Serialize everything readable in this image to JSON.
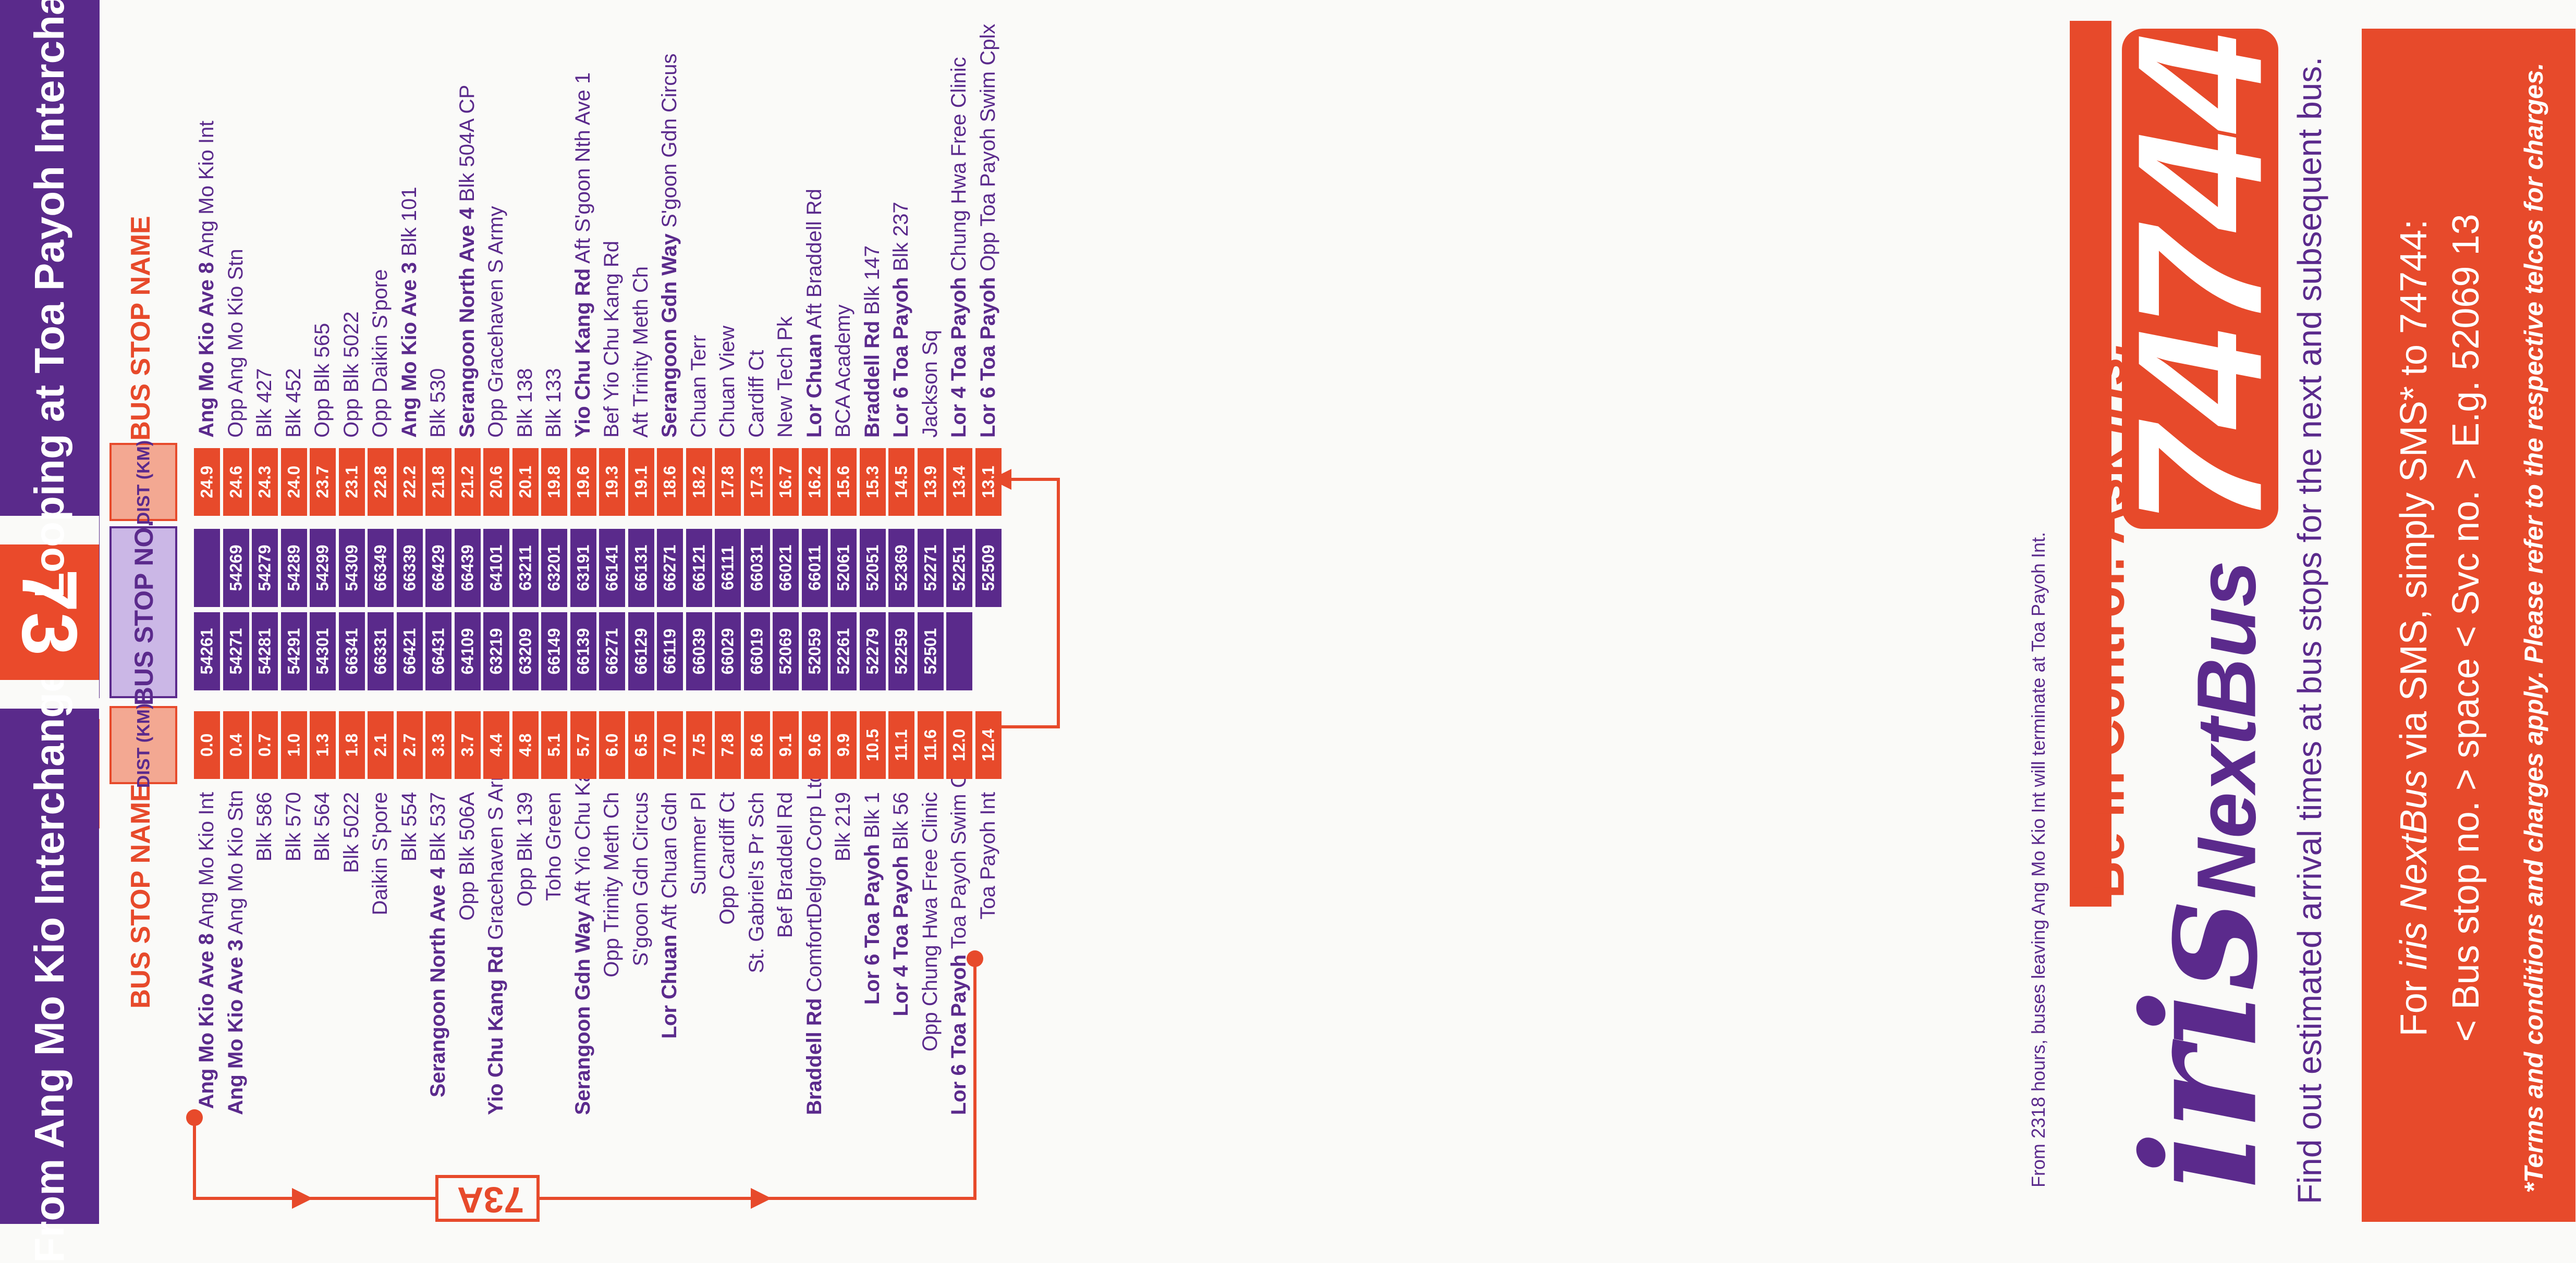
{
  "left_panel": {
    "header": "From Ang Mo Kio Interchange",
    "col_name": "BUS STOP NAME",
    "col_dist": "DIST (KM)",
    "col_stop": "BUS STOP NO.",
    "rows": [
      {
        "b": "Ang Mo Kio Ave 8",
        "n": " Ang Mo Kio Int",
        "d": "0.0",
        "s": "54261"
      },
      {
        "b": "Ang Mo Kio Ave 3",
        "n": " Ang Mo Kio Stn",
        "d": "0.4",
        "s": "54271"
      },
      {
        "b": "",
        "n": "Blk 586",
        "d": "0.7",
        "s": "54281"
      },
      {
        "b": "",
        "n": "Blk 570",
        "d": "1.0",
        "s": "54291"
      },
      {
        "b": "",
        "n": "Blk 564",
        "d": "1.3",
        "s": "54301"
      },
      {
        "b": "",
        "n": "Blk 5022",
        "d": "1.8",
        "s": "66341"
      },
      {
        "b": "",
        "n": "Daikin S'pore",
        "d": "2.1",
        "s": "66331"
      },
      {
        "b": "",
        "n": "Blk 554",
        "d": "2.7",
        "s": "66421"
      },
      {
        "b": "Serangoon North Ave 4",
        "n": " Blk 537",
        "d": "3.3",
        "s": "66431"
      },
      {
        "b": "",
        "n": "Opp Blk 506A",
        "d": "3.7",
        "s": "64109"
      },
      {
        "b": "Yio Chu Kang Rd",
        "n": " Gracehaven S Army",
        "d": "4.4",
        "s": "63219"
      },
      {
        "b": "",
        "n": "Opp Blk 139",
        "d": "4.8",
        "s": "63209"
      },
      {
        "b": "",
        "n": "Toho Green",
        "d": "5.1",
        "s": "66149"
      },
      {
        "b": "Serangoon Gdn Way",
        "n": " Aft Yio Chu Kang Rd",
        "d": "5.7",
        "s": "66139"
      },
      {
        "b": "",
        "n": "Opp Trinity Meth Ch",
        "d": "6.0",
        "s": "66271"
      },
      {
        "b": "",
        "n": "S'goon Gdn Circus",
        "d": "6.5",
        "s": "66129"
      },
      {
        "b": "Lor Chuan",
        "n": " Aft Chuan Gdn",
        "d": "7.0",
        "s": "66119"
      },
      {
        "b": "",
        "n": "Summer Pl",
        "d": "7.5",
        "s": "66039"
      },
      {
        "b": "",
        "n": "Opp Cardiff Ct",
        "d": "7.8",
        "s": "66029"
      },
      {
        "b": "",
        "n": "St. Gabriel's Pr Sch",
        "d": "8.6",
        "s": "66019"
      },
      {
        "b": "",
        "n": "Bef Braddell Rd",
        "d": "9.1",
        "s": "52069"
      },
      {
        "b": "Braddell Rd",
        "n": " ComfortDelgro Corp Ltd",
        "d": "9.6",
        "s": "52059"
      },
      {
        "b": "",
        "n": "Blk 219",
        "d": "9.9",
        "s": "52261"
      },
      {
        "b": "Lor 6 Toa Payoh",
        "n": " Blk 1",
        "d": "10.5",
        "s": "52279"
      },
      {
        "b": "Lor 4 Toa Payoh",
        "n": " Blk 56",
        "d": "11.1",
        "s": "52259"
      },
      {
        "b": "",
        "n": "Opp Chung Hwa Free Clinic",
        "d": "11.6",
        "s": "52501"
      },
      {
        "b": "Lor 6 Toa Payoh",
        "n": " Toa Payoh Swim Cplx",
        "d": "12.0",
        "s": ""
      },
      {
        "b": "",
        "n": "Toa Payoh Int",
        "d": "12.4",
        "s": ""
      }
    ]
  },
  "service": {
    "number": "73",
    "variant": "73A"
  },
  "right_panel": {
    "header": "Looping at Toa Payoh Interchange",
    "col_dist": "DIST (KM)",
    "col_name": "BUS STOP NAME",
    "rows": [
      {
        "s": "",
        "d": "24.9",
        "b": "Ang Mo Kio Ave 8",
        "n": " Ang Mo Kio Int"
      },
      {
        "s": "54269",
        "d": "24.6",
        "b": "",
        "n": "Opp Ang Mo Kio Stn"
      },
      {
        "s": "54279",
        "d": "24.3",
        "b": "",
        "n": "Blk 427"
      },
      {
        "s": "54289",
        "d": "24.0",
        "b": "",
        "n": "Blk 452"
      },
      {
        "s": "54299",
        "d": "23.7",
        "b": "",
        "n": "Opp Blk 565"
      },
      {
        "s": "54309",
        "d": "23.1",
        "b": "",
        "n": "Opp Blk 5022"
      },
      {
        "s": "66349",
        "d": "22.8",
        "b": "",
        "n": "Opp Daikin S'pore"
      },
      {
        "s": "66339",
        "d": "22.2",
        "b": "Ang Mo Kio Ave 3",
        "n": " Blk 101"
      },
      {
        "s": "66429",
        "d": "21.8",
        "b": "",
        "n": "Blk 530"
      },
      {
        "s": "66439",
        "d": "21.2",
        "b": "Serangoon North Ave 4",
        "n": " Blk 504A CP"
      },
      {
        "s": "64101",
        "d": "20.6",
        "b": "",
        "n": "Opp Gracehaven S Army"
      },
      {
        "s": "63211",
        "d": "20.1",
        "b": "",
        "n": "Blk 138"
      },
      {
        "s": "63201",
        "d": "19.8",
        "b": "",
        "n": "Blk 133"
      },
      {
        "s": "63191",
        "d": "19.6",
        "b": "Yio Chu Kang Rd",
        "n": " Aft S'goon Nth Ave 1"
      },
      {
        "s": "66141",
        "d": "19.3",
        "b": "",
        "n": "Bef Yio Chu Kang Rd"
      },
      {
        "s": "66131",
        "d": "19.1",
        "b": "",
        "n": "Aft Trinity Meth Ch"
      },
      {
        "s": "66271",
        "d": "18.6",
        "b": "Serangoon Gdn Way",
        "n": " S'goon Gdn Circus"
      },
      {
        "s": "66121",
        "d": "18.2",
        "b": "",
        "n": "Chuan Terr"
      },
      {
        "s": "66111",
        "d": "17.8",
        "b": "",
        "n": "Chuan View"
      },
      {
        "s": "66031",
        "d": "17.3",
        "b": "",
        "n": "Cardiff Ct"
      },
      {
        "s": "66021",
        "d": "16.7",
        "b": "",
        "n": "New Tech Pk"
      },
      {
        "s": "66011",
        "d": "16.2",
        "b": "Lor Chuan",
        "n": " Aft Braddell Rd"
      },
      {
        "s": "52061",
        "d": "15.6",
        "b": "",
        "n": "BCA Academy"
      },
      {
        "s": "52051",
        "d": "15.3",
        "b": "Braddell Rd",
        "n": " Blk 147"
      },
      {
        "s": "52369",
        "d": "14.5",
        "b": "Lor 6 Toa Payoh",
        "n": " Blk 237"
      },
      {
        "s": "52271",
        "d": "13.9",
        "b": "",
        "n": "Jackson Sq"
      },
      {
        "s": "52251",
        "d": "13.4",
        "b": "Lor 4 Toa Payoh",
        "n": " Chung Hwa Free Clinic"
      },
      {
        "s": "52509",
        "d": "13.1",
        "b": "Lor 6 Toa Payoh",
        "n": " Opp Toa Payoh Swim Cplx"
      }
    ]
  },
  "note": "From 2318 hours, buses leaving Ang Mo Kio Int will terminate at Toa Payoh Int.",
  "ad": {
    "tagline_a": "Be in Control. Ask ",
    "tagline_b": "iris.",
    "brand_iris": "iris",
    "brand_nextbus": "NextBus",
    "number": "74744",
    "desc": "Find out estimated arrival times at bus stops for the next and subsequent bus.",
    "sms_line1_a": "For ",
    "sms_line1_b": "iris NextBus",
    "sms_line1_c": " via SMS, simply SMS* to 74744:",
    "sms_line2": "< Bus stop no. > space < Svc no. > E.g. 52069 13",
    "terms": "*Terms and conditions and charges apply. Please refer to the respective telcos for charges."
  },
  "colors": {
    "purple": "#5a2a8b",
    "red": "#e74a2b"
  }
}
